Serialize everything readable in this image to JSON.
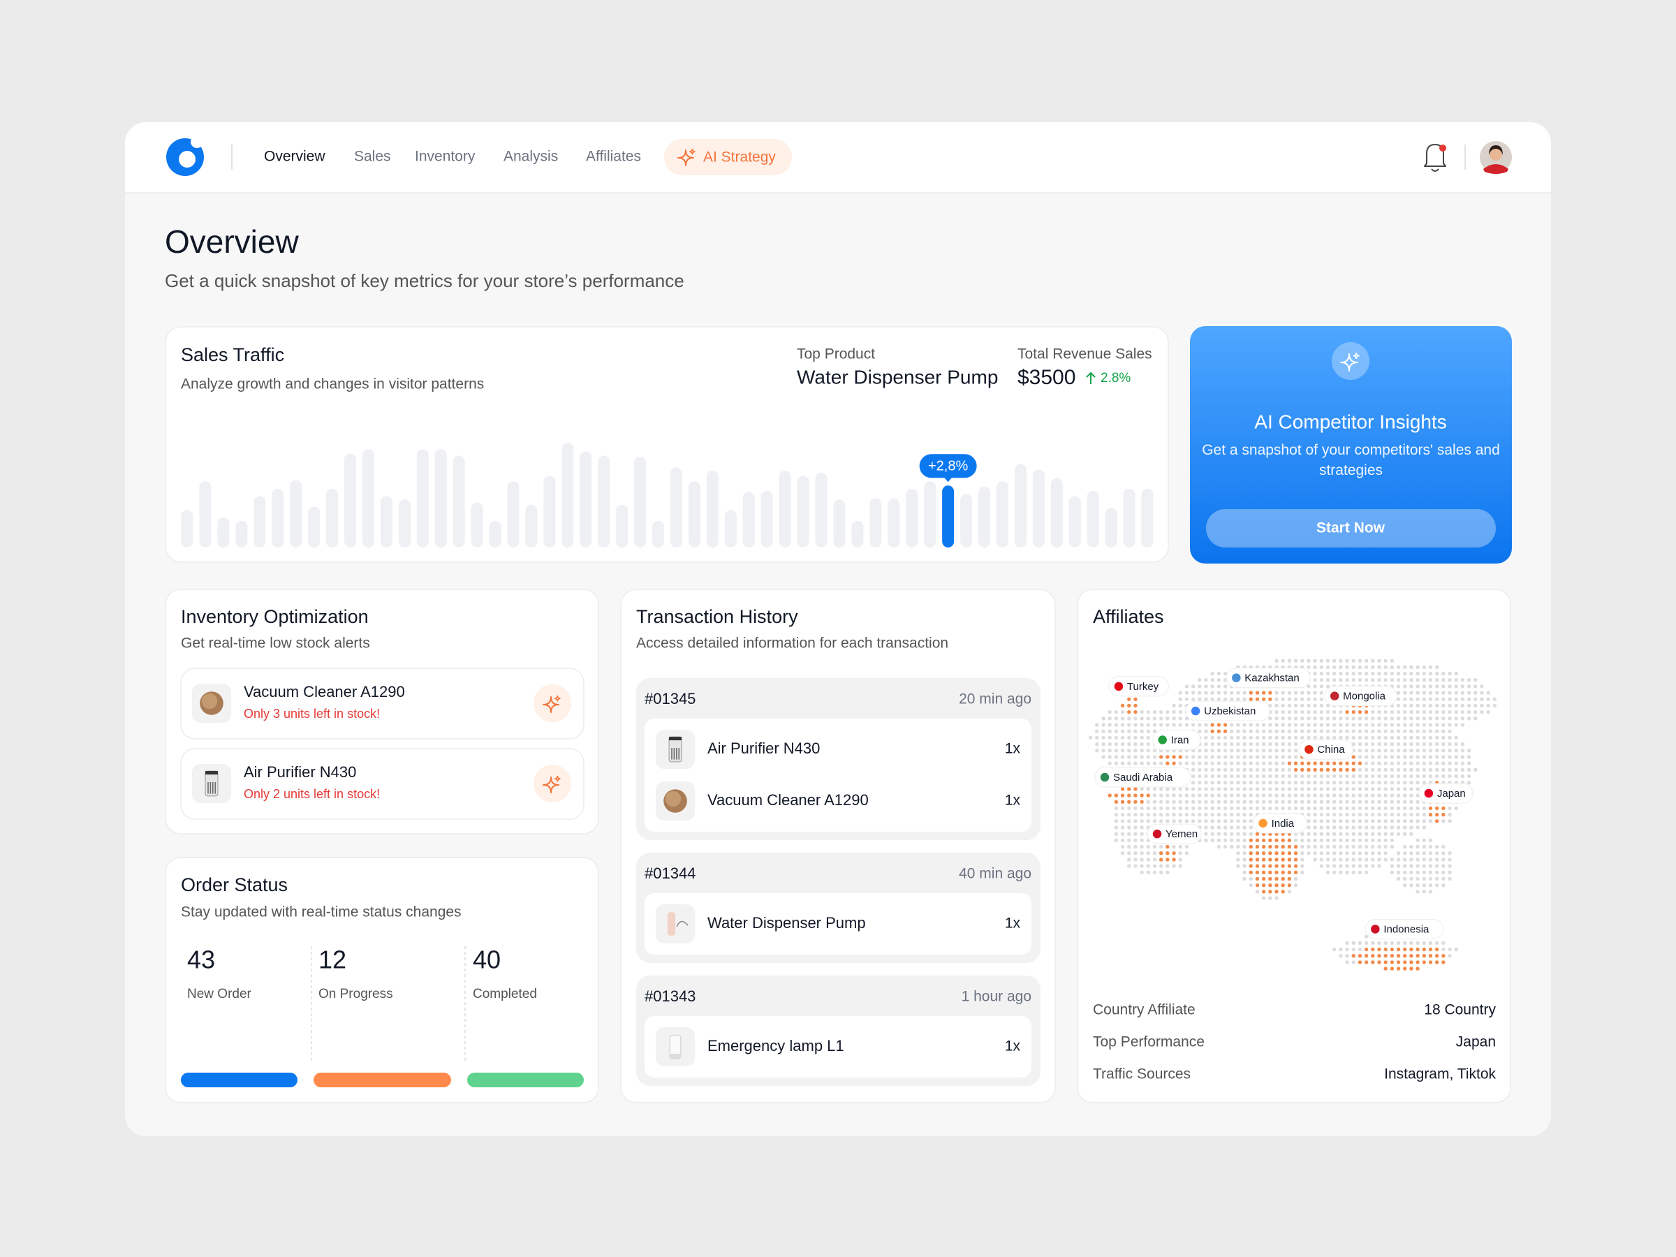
{
  "nav": {
    "items": [
      "Overview",
      "Sales",
      "Inventory",
      "Analysis",
      "Affiliates"
    ],
    "ai": "AI Strategy"
  },
  "header": {
    "title": "Overview",
    "subtitle": "Get a quick snapshot of key metrics for your store’s performance"
  },
  "sales_traffic": {
    "title": "Sales Traffic",
    "subtitle": "Analyze growth and changes in visitor patterns",
    "top_product_label": "Top Product",
    "top_product": "Water Dispenser Pump",
    "revenue_label": "Total Revenue Sales",
    "revenue": "$3500",
    "change": "2.8%",
    "bars": [
      35,
      62,
      28,
      25,
      48,
      55,
      63,
      38,
      55,
      88,
      92,
      48,
      45,
      92,
      92,
      86,
      42,
      25,
      62,
      40,
      67,
      98,
      90,
      86,
      40,
      85,
      25,
      75,
      62,
      72,
      35,
      52,
      53,
      72,
      67,
      70,
      45,
      25,
      46,
      46,
      55,
      62,
      58,
      50,
      57,
      62,
      78,
      73,
      65,
      48,
      53,
      37,
      55,
      55
    ],
    "highlight": {
      "index": 42,
      "label": "+2,8%"
    }
  },
  "ai_card": {
    "title": "AI Competitor Insights",
    "description": "Get a snapshot of your competitors' sales and strategies",
    "button": "Start Now"
  },
  "inventory": {
    "title": "Inventory Optimization",
    "subtitle": "Get real-time low stock alerts",
    "items": [
      {
        "name": "Vacuum Cleaner A1290",
        "alert": "Only 3 units left in stock!"
      },
      {
        "name": "Air Purifier N430",
        "alert": "Only 2 units left in stock!"
      }
    ]
  },
  "order_status": {
    "title": "Order Status",
    "subtitle": "Stay updated with real-time status changes",
    "stats": [
      {
        "value": 43,
        "label": "New Order"
      },
      {
        "value": 12,
        "label": "On Progress"
      },
      {
        "value": 40,
        "label": "Completed"
      }
    ]
  },
  "transactions": {
    "title": "Transaction History",
    "subtitle": "Access detailed information for each transaction",
    "groups": [
      {
        "id": "#01345",
        "time": "20 min ago",
        "items": [
          {
            "name": "Air Purifier N430",
            "qty": "1x"
          },
          {
            "name": "Vacuum Cleaner A1290",
            "qty": "1x"
          }
        ]
      },
      {
        "id": "#01344",
        "time": "40 min ago",
        "items": [
          {
            "name": "Water Dispenser Pump",
            "qty": "1x"
          }
        ]
      },
      {
        "id": "#01343",
        "time": "1 hour ago",
        "items": [
          {
            "name": "Emergency lamp L1",
            "qty": "1x"
          }
        ]
      }
    ]
  },
  "affiliates": {
    "title": "Affiliates",
    "map_labels": [
      "Turkey",
      "Kazakhstan",
      "Uzbekistan",
      "Mongolia",
      "Iran",
      "China",
      "Saudi Arabia",
      "Japan",
      "Yemen",
      "India",
      "Indonesia"
    ],
    "stats": [
      {
        "label": "Country Affiliate",
        "value": "18 Country"
      },
      {
        "label": "Top Performance",
        "value": "Japan"
      },
      {
        "label": "Traffic Sources",
        "value": "Instagram, Tiktok"
      }
    ]
  }
}
